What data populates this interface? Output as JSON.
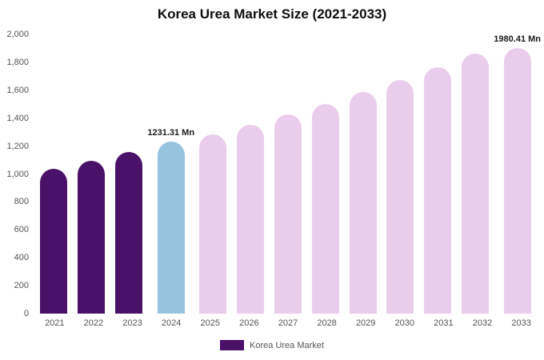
{
  "title": "Korea Urea Market Size (2021-2033)",
  "legend": {
    "label": "Korea Urea Market",
    "swatch_color": "#4a1168"
  },
  "chart_data": {
    "type": "bar",
    "title": "Korea Urea Market Size (2021-2033)",
    "categories": [
      "2021",
      "2022",
      "2023",
      "2024",
      "2025",
      "2026",
      "2027",
      "2028",
      "2029",
      "2030",
      "2031",
      "2032",
      "2033"
    ],
    "values": [
      1035,
      1095,
      1155,
      1231.31,
      1285,
      1350,
      1425,
      1500,
      1585,
      1675,
      1765,
      1865,
      1980.41
    ],
    "bar_colors": [
      "#4a1168",
      "#4a1168",
      "#4a1168",
      "#96c3de",
      "#e9cdeb",
      "#e9cdeb",
      "#e9cdeb",
      "#e9cdeb",
      "#e9cdeb",
      "#e9cdeb",
      "#e9cdeb",
      "#e9cdeb",
      "#e9cdeb"
    ],
    "annotations": [
      {
        "index": 3,
        "text": "1231.31 Mn"
      },
      {
        "index": 12,
        "text": "1980.41 Mn"
      }
    ],
    "xlabel": "",
    "ylabel": "",
    "ylim": [
      0,
      2000
    ],
    "ytick_step": 200,
    "ytick_labels": [
      "0",
      "200",
      "400",
      "600",
      "800",
      "1,000",
      "1,200",
      "1,400",
      "1,600",
      "1,800",
      "2,000"
    ],
    "grid": false,
    "legend_position": "bottom",
    "legend_entries": [
      "Korea Urea Market"
    ]
  }
}
